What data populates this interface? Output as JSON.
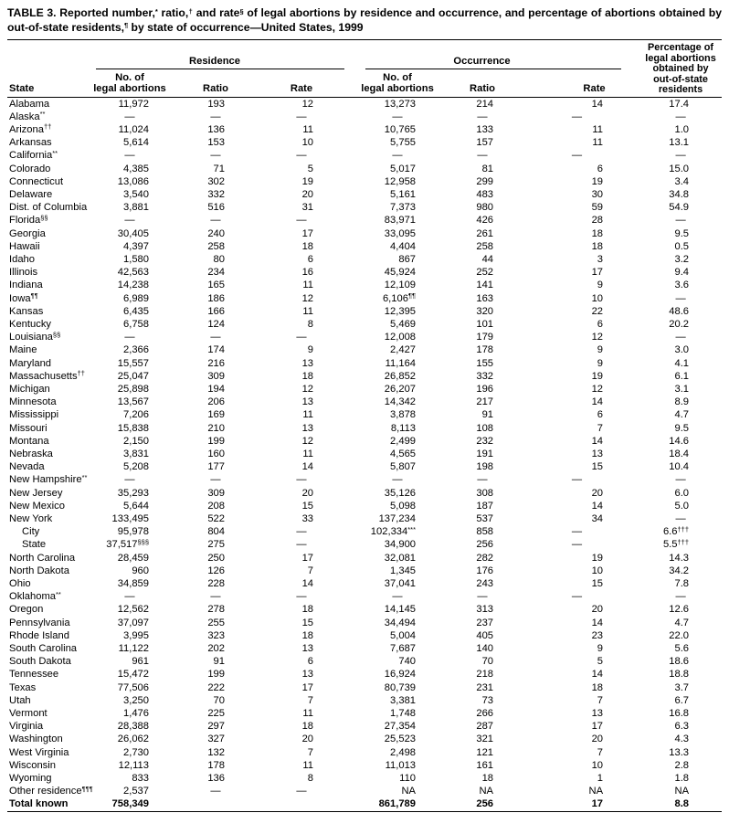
{
  "page": {
    "title": "TABLE 3. Reported number,* ratio,† and rate§ of legal abortions by residence and occurrence, and percentage of abortions obtained by out-of-state residents,¶ by state of occurrence—United States, 1999"
  },
  "table": {
    "headers": {
      "state": "State",
      "residence_group": "Residence",
      "occurrence_group": "Occurrence",
      "no_of_legal_abortions": "No. of\nlegal abortions",
      "ratio": "Ratio",
      "rate": "Rate",
      "out_of_state_pct": "Percentage of\nlegal abortions\nobtained by\nout-of-state\nresidents"
    },
    "rows": [
      {
        "state": "Alabama",
        "cells": [
          "11,972",
          "193",
          "12",
          "13,273",
          "214",
          "14",
          "17.4"
        ]
      },
      {
        "state": "Alaska**",
        "cells": [
          "—",
          "—",
          "—",
          "—",
          "—",
          "—",
          "—"
        ]
      },
      {
        "state": "Arizona††",
        "cells": [
          "11,024",
          "136",
          "11",
          "10,765",
          "133",
          "11",
          "1.0"
        ]
      },
      {
        "state": "Arkansas",
        "cells": [
          "5,614",
          "153",
          "10",
          "5,755",
          "157",
          "11",
          "13.1"
        ]
      },
      {
        "state": "California**",
        "cells": [
          "—",
          "—",
          "—",
          "—",
          "—",
          "—",
          "—"
        ]
      },
      {
        "state": "Colorado",
        "cells": [
          "4,385",
          "71",
          "5",
          "5,017",
          "81",
          "6",
          "15.0"
        ]
      },
      {
        "state": "Connecticut",
        "cells": [
          "13,086",
          "302",
          "19",
          "12,958",
          "299",
          "19",
          "3.4"
        ]
      },
      {
        "state": "Delaware",
        "cells": [
          "3,540",
          "332",
          "20",
          "5,161",
          "483",
          "30",
          "34.8"
        ]
      },
      {
        "state": "Dist. of Columbia",
        "cells": [
          "3,881",
          "516",
          "31",
          "7,373",
          "980",
          "59",
          "54.9"
        ]
      },
      {
        "state": "Florida§§",
        "cells": [
          "—",
          "—",
          "—",
          "83,971",
          "426",
          "28",
          "—"
        ]
      },
      {
        "state": "Georgia",
        "cells": [
          "30,405",
          "240",
          "17",
          "33,095",
          "261",
          "18",
          "9.5"
        ]
      },
      {
        "state": "Hawaii",
        "cells": [
          "4,397",
          "258",
          "18",
          "4,404",
          "258",
          "18",
          "0.5"
        ]
      },
      {
        "state": "Idaho",
        "cells": [
          "1,580",
          "80",
          "6",
          "867",
          "44",
          "3",
          "3.2"
        ]
      },
      {
        "state": "Illinois",
        "cells": [
          "42,563",
          "234",
          "16",
          "45,924",
          "252",
          "17",
          "9.4"
        ]
      },
      {
        "state": "Indiana",
        "cells": [
          "14,238",
          "165",
          "11",
          "12,109",
          "141",
          "9",
          "3.6"
        ]
      },
      {
        "state": "Iowa¶¶",
        "cells": [
          "6,989",
          "186",
          "12",
          "6,106¶¶",
          "163",
          "10",
          "—"
        ]
      },
      {
        "state": "Kansas",
        "cells": [
          "6,435",
          "166",
          "11",
          "12,395",
          "320",
          "22",
          "48.6"
        ]
      },
      {
        "state": "Kentucky",
        "cells": [
          "6,758",
          "124",
          "8",
          "5,469",
          "101",
          "6",
          "20.2"
        ]
      },
      {
        "state": "Louisiana§§",
        "cells": [
          "—",
          "—",
          "—",
          "12,008",
          "179",
          "12",
          "—"
        ]
      },
      {
        "state": "Maine",
        "cells": [
          "2,366",
          "174",
          "9",
          "2,427",
          "178",
          "9",
          "3.0"
        ]
      },
      {
        "state": "Maryland",
        "cells": [
          "15,557",
          "216",
          "13",
          "11,164",
          "155",
          "9",
          "4.1"
        ]
      },
      {
        "state": "Massachusetts††",
        "cells": [
          "25,047",
          "309",
          "18",
          "26,852",
          "332",
          "19",
          "6.1"
        ]
      },
      {
        "state": "Michigan",
        "cells": [
          "25,898",
          "194",
          "12",
          "26,207",
          "196",
          "12",
          "3.1"
        ]
      },
      {
        "state": "Minnesota",
        "cells": [
          "13,567",
          "206",
          "13",
          "14,342",
          "217",
          "14",
          "8.9"
        ]
      },
      {
        "state": "Mississippi",
        "cells": [
          "7,206",
          "169",
          "11",
          "3,878",
          "91",
          "6",
          "4.7"
        ]
      },
      {
        "state": "Missouri",
        "cells": [
          "15,838",
          "210",
          "13",
          "8,113",
          "108",
          "7",
          "9.5"
        ]
      },
      {
        "state": "Montana",
        "cells": [
          "2,150",
          "199",
          "12",
          "2,499",
          "232",
          "14",
          "14.6"
        ]
      },
      {
        "state": "Nebraska",
        "cells": [
          "3,831",
          "160",
          "11",
          "4,565",
          "191",
          "13",
          "18.4"
        ]
      },
      {
        "state": "Nevada",
        "cells": [
          "5,208",
          "177",
          "14",
          "5,807",
          "198",
          "15",
          "10.4"
        ]
      },
      {
        "state": "New Hampshire**",
        "cells": [
          "—",
          "—",
          "—",
          "—",
          "—",
          "—",
          "—"
        ]
      },
      {
        "state": "New Jersey",
        "cells": [
          "35,293",
          "309",
          "20",
          "35,126",
          "308",
          "20",
          "6.0"
        ]
      },
      {
        "state": "New Mexico",
        "cells": [
          "5,644",
          "208",
          "15",
          "5,098",
          "187",
          "14",
          "5.0"
        ]
      },
      {
        "state": "New York",
        "cells": [
          "133,495",
          "522",
          "33",
          "137,234",
          "537",
          "34",
          "—"
        ]
      },
      {
        "state": "City",
        "indent": true,
        "cells": [
          "95,978",
          "804",
          "—",
          "102,334***",
          "858",
          "—",
          "6.6†††"
        ]
      },
      {
        "state": "State",
        "indent": true,
        "cells": [
          "37,517§§§",
          "275",
          "—",
          "34,900",
          "256",
          "—",
          "5.5†††"
        ]
      },
      {
        "state": "North Carolina",
        "cells": [
          "28,459",
          "250",
          "17",
          "32,081",
          "282",
          "19",
          "14.3"
        ]
      },
      {
        "state": "North Dakota",
        "cells": [
          "960",
          "126",
          "7",
          "1,345",
          "176",
          "10",
          "34.2"
        ]
      },
      {
        "state": "Ohio",
        "cells": [
          "34,859",
          "228",
          "14",
          "37,041",
          "243",
          "15",
          "7.8"
        ]
      },
      {
        "state": "Oklahoma**",
        "cells": [
          "—",
          "—",
          "—",
          "—",
          "—",
          "—",
          "—"
        ]
      },
      {
        "state": "Oregon",
        "cells": [
          "12,562",
          "278",
          "18",
          "14,145",
          "313",
          "20",
          "12.6"
        ]
      },
      {
        "state": "Pennsylvania",
        "cells": [
          "37,097",
          "255",
          "15",
          "34,494",
          "237",
          "14",
          "4.7"
        ]
      },
      {
        "state": "Rhode Island",
        "cells": [
          "3,995",
          "323",
          "18",
          "5,004",
          "405",
          "23",
          "22.0"
        ]
      },
      {
        "state": "South Carolina",
        "cells": [
          "11,122",
          "202",
          "13",
          "7,687",
          "140",
          "9",
          "5.6"
        ]
      },
      {
        "state": "South Dakota",
        "cells": [
          "961",
          "91",
          "6",
          "740",
          "70",
          "5",
          "18.6"
        ]
      },
      {
        "state": "Tennessee",
        "cells": [
          "15,472",
          "199",
          "13",
          "16,924",
          "218",
          "14",
          "18.8"
        ]
      },
      {
        "state": "Texas",
        "cells": [
          "77,506",
          "222",
          "17",
          "80,739",
          "231",
          "18",
          "3.7"
        ]
      },
      {
        "state": "Utah",
        "cells": [
          "3,250",
          "70",
          "7",
          "3,381",
          "73",
          "7",
          "6.7"
        ]
      },
      {
        "state": "Vermont",
        "cells": [
          "1,476",
          "225",
          "11",
          "1,748",
          "266",
          "13",
          "16.8"
        ]
      },
      {
        "state": "Virginia",
        "cells": [
          "28,388",
          "297",
          "18",
          "27,354",
          "287",
          "17",
          "6.3"
        ]
      },
      {
        "state": "Washington",
        "cells": [
          "26,062",
          "327",
          "20",
          "25,523",
          "321",
          "20",
          "4.3"
        ]
      },
      {
        "state": "West Virginia",
        "cells": [
          "2,730",
          "132",
          "7",
          "2,498",
          "121",
          "7",
          "13.3"
        ]
      },
      {
        "state": "Wisconsin",
        "cells": [
          "12,113",
          "178",
          "11",
          "11,013",
          "161",
          "10",
          "2.8"
        ]
      },
      {
        "state": "Wyoming",
        "cells": [
          "833",
          "136",
          "8",
          "110",
          "18",
          "1",
          "1.8"
        ]
      },
      {
        "state": "Other residence¶¶¶",
        "cells": [
          "2,537",
          "—",
          "—",
          "NA",
          "NA",
          "NA",
          "NA"
        ]
      },
      {
        "state": "Total known",
        "bold": true,
        "cells": [
          "758,349",
          "",
          "",
          "861,789",
          "256",
          "17",
          "8.8"
        ]
      }
    ]
  }
}
